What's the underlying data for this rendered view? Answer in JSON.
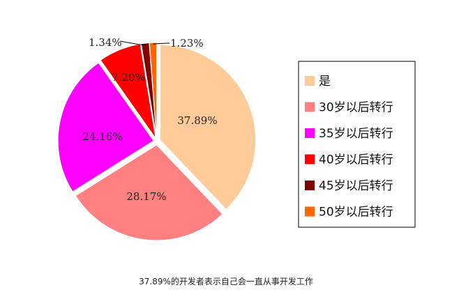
{
  "caption": "37.89%的开发者表示自己会一直从事开发工作",
  "chart_data": {
    "type": "pie",
    "slices": [
      {
        "name": "是",
        "value": 37.89,
        "label": "37.89%",
        "color": "#FFCC99"
      },
      {
        "name": "30岁以后转行",
        "value": 28.17,
        "label": "28.17%",
        "color": "#FF8080"
      },
      {
        "name": "35岁以后转行",
        "value": 24.16,
        "label": "24.16%",
        "color": "#FF00FF"
      },
      {
        "name": "40岁以后转行",
        "value": 7.2,
        "label": "7.20%",
        "color": "#FF0000"
      },
      {
        "name": "45岁以后转行",
        "value": 1.34,
        "label": "1.34%",
        "color": "#800000"
      },
      {
        "name": "50岁以后转行",
        "value": 1.23,
        "label": "1.23%",
        "color": "#FF6600"
      }
    ],
    "legend_position": "right",
    "exploded": true
  }
}
